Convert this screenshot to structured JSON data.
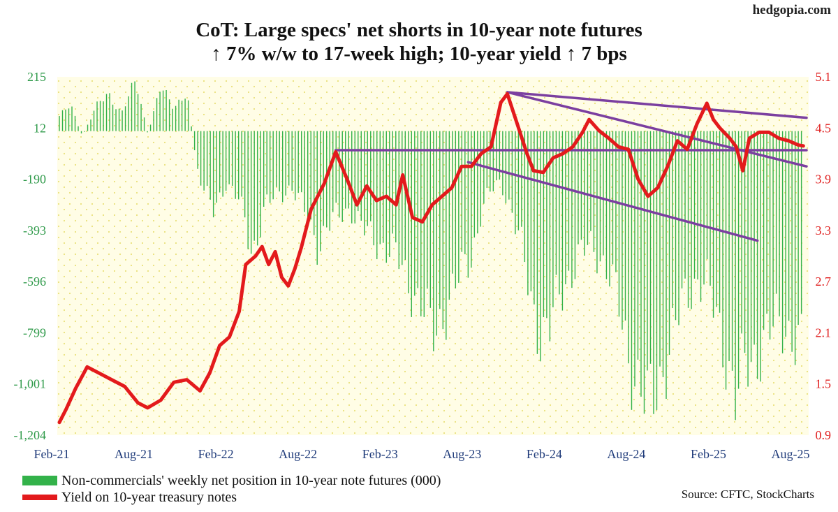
{
  "brand": "hedgopia.com",
  "title_line1": "CoT: Large specs' net shorts in 10-year note futures",
  "title_line2": "↑ 7% w/w to 17-week high; 10-year yield ↑ 7 bps",
  "source": "Source: CFTC, StockCharts",
  "colors": {
    "bars": "#33b24a",
    "yield": "#e31a1c",
    "trend": "#7b3fa0",
    "background": "#fffde6",
    "grid_dots": "#e9e07a"
  },
  "chart_data": {
    "type": "bar+line",
    "x_ticks": [
      "Feb-21",
      "Aug-21",
      "Feb-22",
      "Aug-22",
      "Feb-23",
      "Aug-23",
      "Feb-24",
      "Aug-24",
      "Feb-25",
      "Aug-25"
    ],
    "x_range": [
      2021.08,
      2025.65
    ],
    "y_left": {
      "ticks": [
        "215",
        "12",
        "-190",
        "-393",
        "-596",
        "-799",
        "-1,001",
        "-1,204"
      ],
      "range": [
        -1204,
        215
      ]
    },
    "y_right": {
      "ticks": [
        "5.1",
        "4.5",
        "3.9",
        "3.3",
        "2.7",
        "2.1",
        "1.5",
        "0.9"
      ],
      "range": [
        0.9,
        5.1
      ]
    },
    "series": [
      {
        "name": "Non-commercials' weekly net position in 10-year note futures (000)",
        "kind": "bar",
        "axis": "left",
        "points": [
          [
            2021.08,
            60
          ],
          [
            2021.15,
            100
          ],
          [
            2021.22,
            -20
          ],
          [
            2021.3,
            90
          ],
          [
            2021.38,
            150
          ],
          [
            2021.46,
            70
          ],
          [
            2021.55,
            200
          ],
          [
            2021.62,
            -10
          ],
          [
            2021.7,
            170
          ],
          [
            2021.78,
            100
          ],
          [
            2021.86,
            150
          ],
          [
            2021.92,
            -140
          ],
          [
            2021.97,
            -250
          ],
          [
            2022.02,
            -320
          ],
          [
            2022.1,
            -200
          ],
          [
            2022.18,
            -280
          ],
          [
            2022.26,
            -480
          ],
          [
            2022.34,
            -300
          ],
          [
            2022.42,
            -250
          ],
          [
            2022.5,
            -220
          ],
          [
            2022.58,
            -320
          ],
          [
            2022.66,
            -450
          ],
          [
            2022.72,
            -380
          ],
          [
            2022.8,
            -330
          ],
          [
            2022.86,
            -300
          ],
          [
            2022.92,
            -380
          ],
          [
            2022.98,
            -420
          ],
          [
            2023.06,
            -450
          ],
          [
            2023.14,
            -500
          ],
          [
            2023.22,
            -600
          ],
          [
            2023.3,
            -700
          ],
          [
            2023.36,
            -820
          ],
          [
            2023.42,
            -730
          ],
          [
            2023.48,
            -650
          ],
          [
            2023.54,
            -570
          ],
          [
            2023.6,
            -490
          ],
          [
            2023.66,
            -320
          ],
          [
            2023.72,
            -240
          ],
          [
            2023.78,
            -200
          ],
          [
            2023.84,
            -300
          ],
          [
            2023.9,
            -450
          ],
          [
            2023.96,
            -650
          ],
          [
            2024.02,
            -800
          ],
          [
            2024.08,
            -790
          ],
          [
            2024.14,
            -650
          ],
          [
            2024.2,
            -560
          ],
          [
            2024.26,
            -500
          ],
          [
            2024.32,
            -460
          ],
          [
            2024.38,
            -480
          ],
          [
            2024.44,
            -560
          ],
          [
            2024.5,
            -700
          ],
          [
            2024.56,
            -880
          ],
          [
            2024.62,
            -1000
          ],
          [
            2024.68,
            -1120
          ],
          [
            2024.74,
            -1000
          ],
          [
            2024.8,
            -880
          ],
          [
            2024.86,
            -760
          ],
          [
            2024.92,
            -640
          ],
          [
            2024.98,
            -580
          ],
          [
            2025.04,
            -620
          ],
          [
            2025.1,
            -740
          ],
          [
            2025.16,
            -880
          ],
          [
            2025.22,
            -1080
          ],
          [
            2025.28,
            -930
          ],
          [
            2025.34,
            -880
          ],
          [
            2025.4,
            -820
          ],
          [
            2025.46,
            -780
          ],
          [
            2025.52,
            -760
          ],
          [
            2025.58,
            -820
          ],
          [
            2025.63,
            -880
          ]
        ]
      },
      {
        "name": "Yield on 10-year treasury notes",
        "kind": "line",
        "axis": "right",
        "points": [
          [
            2021.08,
            1.05
          ],
          [
            2021.12,
            1.2
          ],
          [
            2021.18,
            1.45
          ],
          [
            2021.25,
            1.7
          ],
          [
            2021.32,
            1.63
          ],
          [
            2021.4,
            1.55
          ],
          [
            2021.48,
            1.47
          ],
          [
            2021.56,
            1.28
          ],
          [
            2021.62,
            1.22
          ],
          [
            2021.7,
            1.31
          ],
          [
            2021.78,
            1.52
          ],
          [
            2021.86,
            1.55
          ],
          [
            2021.94,
            1.42
          ],
          [
            2022.0,
            1.63
          ],
          [
            2022.06,
            1.95
          ],
          [
            2022.12,
            2.05
          ],
          [
            2022.18,
            2.35
          ],
          [
            2022.22,
            2.9
          ],
          [
            2022.28,
            3.0
          ],
          [
            2022.32,
            3.11
          ],
          [
            2022.36,
            2.9
          ],
          [
            2022.4,
            3.05
          ],
          [
            2022.44,
            2.75
          ],
          [
            2022.48,
            2.65
          ],
          [
            2022.52,
            2.85
          ],
          [
            2022.56,
            3.1
          ],
          [
            2022.62,
            3.55
          ],
          [
            2022.7,
            3.85
          ],
          [
            2022.77,
            4.22
          ],
          [
            2022.84,
            3.9
          ],
          [
            2022.9,
            3.6
          ],
          [
            2022.96,
            3.82
          ],
          [
            2023.02,
            3.65
          ],
          [
            2023.08,
            3.7
          ],
          [
            2023.14,
            3.6
          ],
          [
            2023.18,
            3.95
          ],
          [
            2023.24,
            3.45
          ],
          [
            2023.3,
            3.4
          ],
          [
            2023.36,
            3.6
          ],
          [
            2023.42,
            3.7
          ],
          [
            2023.48,
            3.8
          ],
          [
            2023.54,
            4.05
          ],
          [
            2023.6,
            4.05
          ],
          [
            2023.66,
            4.2
          ],
          [
            2023.72,
            4.28
          ],
          [
            2023.78,
            4.8
          ],
          [
            2023.82,
            4.9
          ],
          [
            2023.88,
            4.55
          ],
          [
            2023.94,
            4.2
          ],
          [
            2023.98,
            4.0
          ],
          [
            2024.04,
            3.98
          ],
          [
            2024.1,
            4.15
          ],
          [
            2024.16,
            4.2
          ],
          [
            2024.22,
            4.28
          ],
          [
            2024.28,
            4.45
          ],
          [
            2024.32,
            4.6
          ],
          [
            2024.38,
            4.47
          ],
          [
            2024.44,
            4.38
          ],
          [
            2024.5,
            4.28
          ],
          [
            2024.56,
            4.25
          ],
          [
            2024.62,
            3.9
          ],
          [
            2024.68,
            3.7
          ],
          [
            2024.74,
            3.8
          ],
          [
            2024.8,
            4.05
          ],
          [
            2024.86,
            4.35
          ],
          [
            2024.92,
            4.25
          ],
          [
            2024.98,
            4.55
          ],
          [
            2025.04,
            4.79
          ],
          [
            2025.08,
            4.6
          ],
          [
            2025.12,
            4.5
          ],
          [
            2025.18,
            4.38
          ],
          [
            2025.22,
            4.28
          ],
          [
            2025.26,
            4.0
          ],
          [
            2025.3,
            4.38
          ],
          [
            2025.36,
            4.45
          ],
          [
            2025.42,
            4.45
          ],
          [
            2025.48,
            4.38
          ],
          [
            2025.54,
            4.35
          ],
          [
            2025.6,
            4.3
          ],
          [
            2025.63,
            4.29
          ]
        ]
      }
    ],
    "trendlines": [
      {
        "axis": "right",
        "from": [
          2023.82,
          4.92
        ],
        "to": [
          2025.65,
          4.62
        ]
      },
      {
        "axis": "right",
        "from": [
          2023.82,
          4.92
        ],
        "to": [
          2025.65,
          4.05
        ]
      },
      {
        "axis": "right",
        "from": [
          2022.77,
          4.24
        ],
        "to": [
          2025.65,
          4.24
        ]
      },
      {
        "axis": "right",
        "from": [
          2023.58,
          4.1
        ],
        "to": [
          2025.35,
          3.18
        ]
      }
    ]
  }
}
